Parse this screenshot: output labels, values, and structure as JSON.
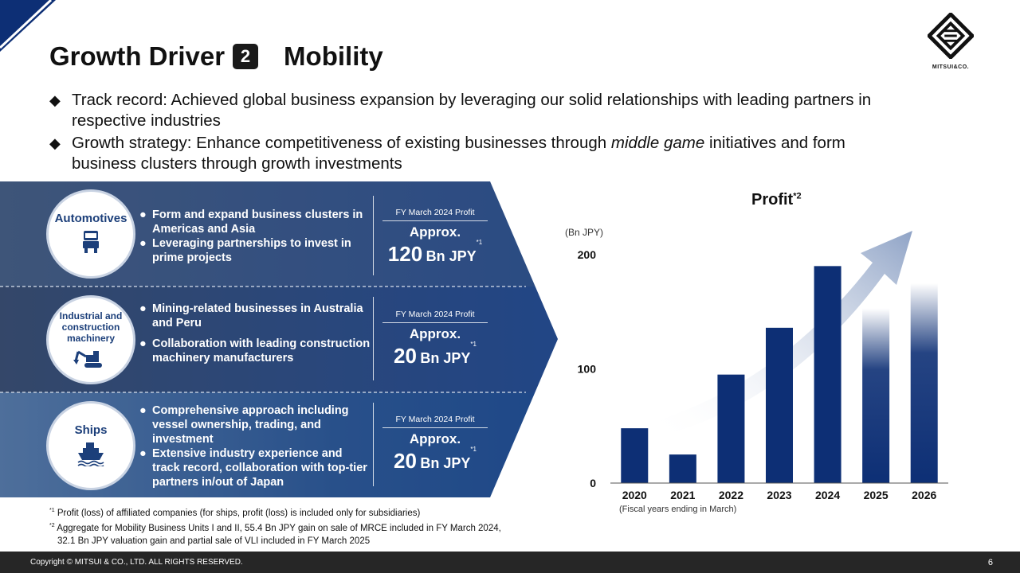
{
  "header": {
    "title": "Growth Driver",
    "number": "2",
    "subtitle": "Mobility",
    "logo_text": "MITSUI&CO."
  },
  "bullets": [
    {
      "text": "Track record: Achieved global business expansion by leveraging our solid relationships with leading partners in respective industries"
    },
    {
      "pre": "Growth strategy: Enhance competitiveness of existing businesses through ",
      "em": "middle game",
      "post": " initiatives and form business clusters through growth investments"
    }
  ],
  "segments": [
    {
      "label": "Automotives",
      "icon": "truck-icon",
      "points": [
        "Form and expand business clusters in Americas and Asia",
        "Leveraging partnerships to invest in prime projects"
      ],
      "fy": "FY March 2024 Profit",
      "approx": "Approx.",
      "value": "120",
      "unit": "Bn JPY",
      "note": "*1"
    },
    {
      "label": "Industrial and construction machinery",
      "icon": "excavator-icon",
      "points": [
        "Mining-related businesses in Australia and Peru",
        "Collaboration with leading construction machinery manufacturers"
      ],
      "fy": "FY March 2024 Profit",
      "approx": "Approx.",
      "value": "20",
      "unit": "Bn JPY",
      "note": "*1"
    },
    {
      "label": "Ships",
      "icon": "ship-icon",
      "points": [
        "Comprehensive approach including vessel ownership, trading, and investment",
        "Extensive industry experience and track record, collaboration with top-tier partners in/out of Japan"
      ],
      "fy": "FY March 2024 Profit",
      "approx": "Approx.",
      "value": "20",
      "unit": "Bn JPY",
      "note": "*1"
    }
  ],
  "chart_data": {
    "type": "bar",
    "title": "Profit",
    "title_note": "*2",
    "ylabel": "(Bn JPY)",
    "xlabel": "(Fiscal years ending in March)",
    "categories": [
      "2020",
      "2021",
      "2022",
      "2023",
      "2024",
      "2025",
      "2026"
    ],
    "values": [
      48,
      25,
      95,
      136,
      190,
      153,
      175
    ],
    "faded_categories": [
      "2025",
      "2026"
    ],
    "yticks": [
      0,
      100,
      200
    ],
    "ylim": [
      0,
      200
    ],
    "grid": false,
    "bar_color": "#0d2f75",
    "arrow_color": "#8fa3c6"
  },
  "footnotes": [
    {
      "mark": "*1",
      "text": "Profit (loss) of affiliated companies (for ships, profit (loss) is included only for subsidiaries)"
    },
    {
      "mark": "*2",
      "text": "Aggregate for Mobility Business Units I and II, 55.4 Bn JPY gain on sale of MRCE included in FY March 2024,"
    },
    {
      "mark": "",
      "text": "32.1 Bn JPY valuation gain and partial sale of VLI included in FY March 2025"
    }
  ],
  "footer": {
    "copyright": "Copyright © MITSUI & CO., LTD. ALL RIGHTS RESERVED.",
    "page": "6"
  }
}
